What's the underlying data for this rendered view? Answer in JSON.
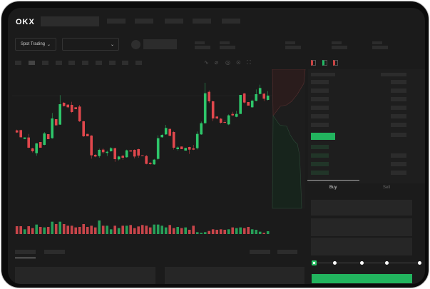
{
  "brand": {
    "logo": "OKX"
  },
  "colors": {
    "up": "#2ec66a",
    "down": "#e0474c",
    "accent": "#22b45e",
    "background": "#1b1b1b"
  },
  "toolbar": {
    "market_select": "Spot Trading",
    "pair_select": ""
  },
  "trade": {
    "buy_tab": "Buy",
    "sell_tab": "Sell",
    "slider_percent": 0
  },
  "icons": [
    "chevron-down-icon",
    "orderbook-both-icon",
    "orderbook-bids-icon",
    "orderbook-asks-icon",
    "line-icon",
    "ruler-icon",
    "camera-icon",
    "settings-icon",
    "fullscreen-icon"
  ],
  "chart": {
    "candles": [
      [
        185,
        188,
        174,
        176
      ],
      [
        186,
        188,
        153,
        156
      ],
      [
        149,
        155,
        149,
        155
      ],
      [
        155,
        170,
        110,
        112
      ],
      [
        109,
        112,
        92,
        97
      ],
      [
        89,
        132,
        78,
        130
      ],
      [
        136,
        136,
        112,
        112
      ],
      [
        124,
        178,
        122,
        172
      ],
      [
        169,
        169,
        148,
        148
      ],
      [
        152,
        258,
        150,
        235
      ],
      [
        232,
        232,
        206,
        206
      ],
      [
        209,
        333,
        208,
        295
      ],
      [
        301,
        304,
        285,
        287
      ],
      [
        293,
        295,
        278,
        282
      ],
      [
        292,
        305,
        258,
        262
      ],
      [
        282,
        282,
        274,
        274
      ],
      [
        285,
        292,
        220,
        223
      ],
      [
        223,
        225,
        157,
        160
      ],
      [
        170,
        170,
        160,
        160
      ],
      [
        163,
        165,
        66,
        80
      ],
      [
        82,
        85,
        72,
        75
      ],
      [
        77,
        108,
        70,
        103
      ],
      [
        104,
        110,
        86,
        93
      ],
      [
        90,
        100,
        77,
        95
      ],
      [
        97,
        115,
        95,
        110
      ],
      [
        110,
        112,
        53,
        64
      ],
      [
        63,
        78,
        58,
        75
      ],
      [
        78,
        82,
        61,
        70
      ],
      [
        72,
        104,
        70,
        101
      ],
      [
        101,
        101,
        96,
        96
      ],
      [
        103,
        105,
        67,
        75
      ],
      [
        106,
        108,
        70,
        79
      ],
      [
        80,
        80,
        78,
        78
      ],
      [
        77,
        82,
        42,
        44
      ],
      [
        48,
        52,
        40,
        43
      ],
      [
        42,
        65,
        40,
        62
      ],
      [
        65,
        164,
        60,
        152
      ],
      [
        156,
        170,
        154,
        166
      ],
      [
        168,
        208,
        166,
        195
      ],
      [
        191,
        193,
        160,
        162
      ],
      [
        178,
        182,
        104,
        112
      ],
      [
        106,
        118,
        100,
        113
      ],
      [
        117,
        117,
        106,
        106
      ],
      [
        100,
        111,
        100,
        111
      ],
      [
        115,
        116,
        86,
        104
      ],
      [
        109,
        124,
        102,
        104
      ],
      [
        110,
        180,
        105,
        170
      ],
      [
        168,
        222,
        166,
        215
      ],
      [
        215,
        385,
        213,
        341
      ],
      [
        347,
        353,
        300,
        307
      ],
      [
        307,
        310,
        224,
        235
      ],
      [
        243,
        245,
        232,
        235
      ],
      [
        234,
        237,
        213,
        217
      ],
      [
        220,
        228,
        215,
        217
      ],
      [
        210,
        252,
        207,
        248
      ],
      [
        254,
        263,
        245,
        248
      ],
      [
        242,
        267,
        240,
        254
      ],
      [
        254,
        334,
        254,
        334
      ],
      [
        340,
        342,
        298,
        302
      ],
      [
        304,
        304,
        289,
        289
      ],
      [
        282,
        314,
        280,
        310
      ],
      [
        309,
        357,
        307,
        337
      ],
      [
        338,
        377,
        336,
        363
      ],
      [
        339,
        342,
        308,
        318
      ],
      [
        313,
        350,
        310,
        331
      ]
    ],
    "volumes": [
      33,
      33,
      20,
      33,
      25,
      40,
      30,
      28,
      30,
      52,
      42,
      52,
      42,
      35,
      35,
      28,
      30,
      42,
      30,
      35,
      28,
      57,
      35,
      35,
      20,
      35,
      25,
      35,
      35,
      38,
      25,
      32,
      38,
      35,
      28,
      40,
      40,
      35,
      28,
      38,
      25,
      30,
      25,
      28,
      18,
      35,
      8,
      5,
      8,
      13,
      20,
      18,
      20,
      18,
      20,
      28,
      25,
      28,
      25,
      30,
      20,
      18,
      10,
      5,
      12
    ]
  }
}
